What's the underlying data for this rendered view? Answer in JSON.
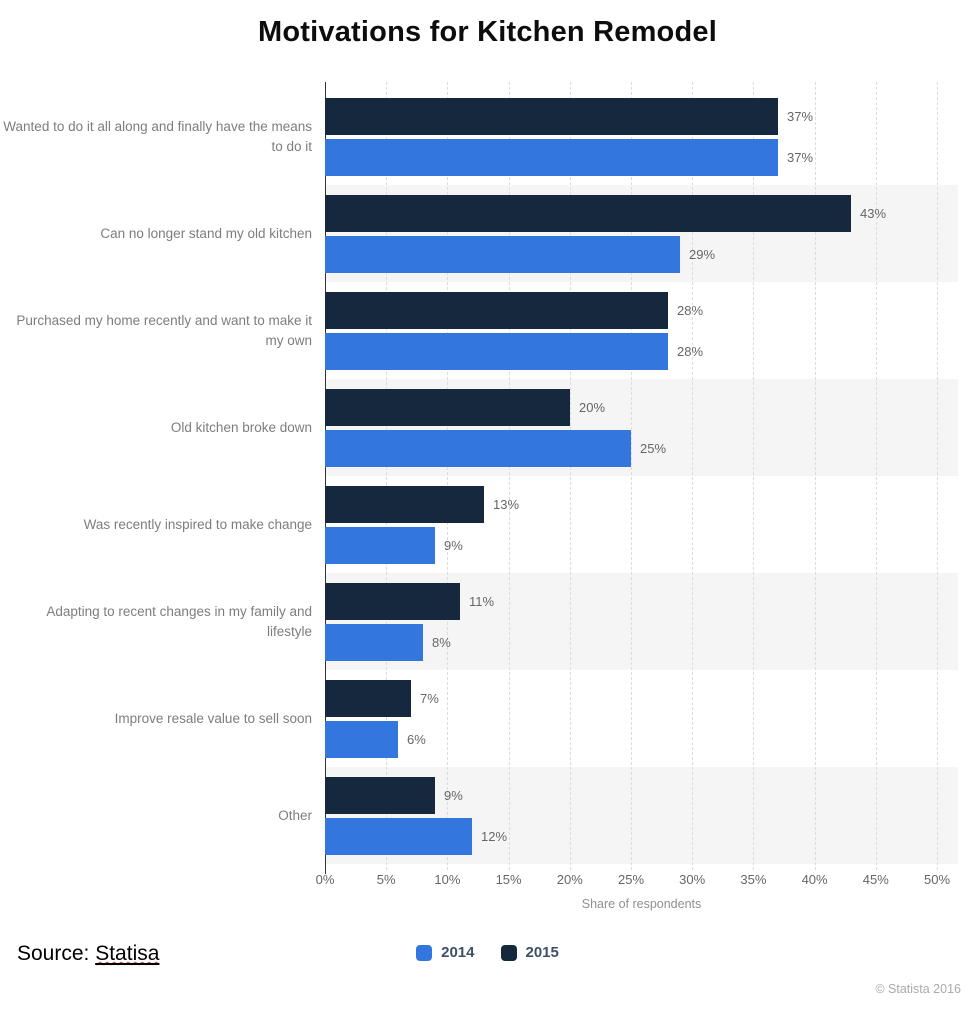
{
  "title": "Motivations for Kitchen Remodel",
  "chart_data": {
    "type": "bar",
    "orientation": "horizontal",
    "title": "Motivations for Kitchen Remodel",
    "categories": [
      "Wanted to do it all along and finally have the means to do it",
      "Can no longer stand my old kitchen",
      "Purchased my home recently and want to make it my own",
      "Old kitchen broke down",
      "Was recently inspired to make change",
      "Adapting to recent changes in my family and lifestyle",
      "Improve resale value to sell soon",
      "Other"
    ],
    "series": [
      {
        "name": "2014",
        "color": "#3377DE",
        "values": [
          37,
          29,
          28,
          25,
          9,
          8,
          6,
          12
        ]
      },
      {
        "name": "2015",
        "color": "#16283D",
        "values": [
          37,
          43,
          28,
          20,
          13,
          11,
          7,
          9
        ]
      }
    ],
    "value_suffix": "%",
    "xlabel": "Share of respondents",
    "xlim": [
      0,
      50
    ],
    "xticks": [
      "0%",
      "5%",
      "10%",
      "15%",
      "20%",
      "25%",
      "30%",
      "35%",
      "40%",
      "45%",
      "50%"
    ],
    "grid": "vertical-dashed",
    "legend_position": "bottom-center",
    "zebra_row_color": "#f5f5f5"
  },
  "source": {
    "prefix": "Source: ",
    "name": "Statisa"
  },
  "footer": {
    "copyright": "© Statista 2016"
  }
}
